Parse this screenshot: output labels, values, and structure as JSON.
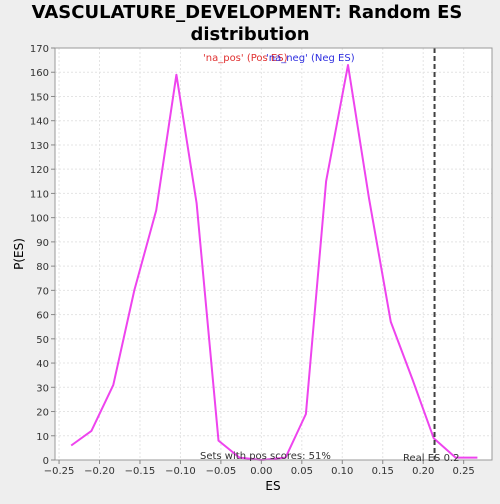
{
  "chart_data": {
    "type": "line",
    "title_line1": "VASCULATURE_DEVELOPMENT: Random ES",
    "title_line2": "distribution",
    "xlabel": "ES",
    "ylabel": "P(ES)",
    "xlim": [
      -0.255,
      0.285
    ],
    "ylim": [
      0,
      170
    ],
    "x_ticks": [
      -0.25,
      -0.2,
      -0.15,
      -0.1,
      -0.05,
      0.0,
      0.05,
      0.1,
      0.15,
      0.2,
      0.25
    ],
    "x_tick_labels": [
      "−0.25",
      "−0.20",
      "−0.15",
      "−0.10",
      "−0.05",
      "0.00",
      "0.05",
      "0.10",
      "0.15",
      "0.20",
      "0.25"
    ],
    "y_ticks": [
      0,
      10,
      20,
      30,
      40,
      50,
      60,
      70,
      80,
      90,
      100,
      110,
      120,
      130,
      140,
      150,
      160,
      170
    ],
    "grid": true,
    "legend": {
      "pos_label": "'na_pos' (Pos ES)",
      "neg_label": "'na_neg' (Neg ES)",
      "pos_color": "#e03030",
      "neg_color": "#3030e0",
      "placement": "top-center"
    },
    "series": [
      {
        "color": "#ee44ee",
        "x": [
          -0.235,
          -0.21,
          -0.183,
          -0.157,
          -0.13,
          -0.105,
          -0.08,
          -0.053,
          -0.027,
          0.0,
          0.03,
          0.055,
          0.08,
          0.107,
          0.133,
          0.16,
          0.187,
          0.213,
          0.24,
          0.267
        ],
        "y": [
          6,
          12,
          31,
          70,
          103,
          159,
          106,
          8,
          1,
          0,
          1,
          19,
          115,
          163,
          108,
          57,
          33,
          9,
          1,
          1
        ]
      }
    ],
    "real_es": {
      "value": 0.214,
      "label": "Real ES 0.2",
      "color": "#404040"
    },
    "annotation": "Sets with pos scores: 51%",
    "colors": {
      "background": "#eeeeee",
      "plot_background": "#ffffff",
      "grid": "#e4e4e4"
    }
  }
}
